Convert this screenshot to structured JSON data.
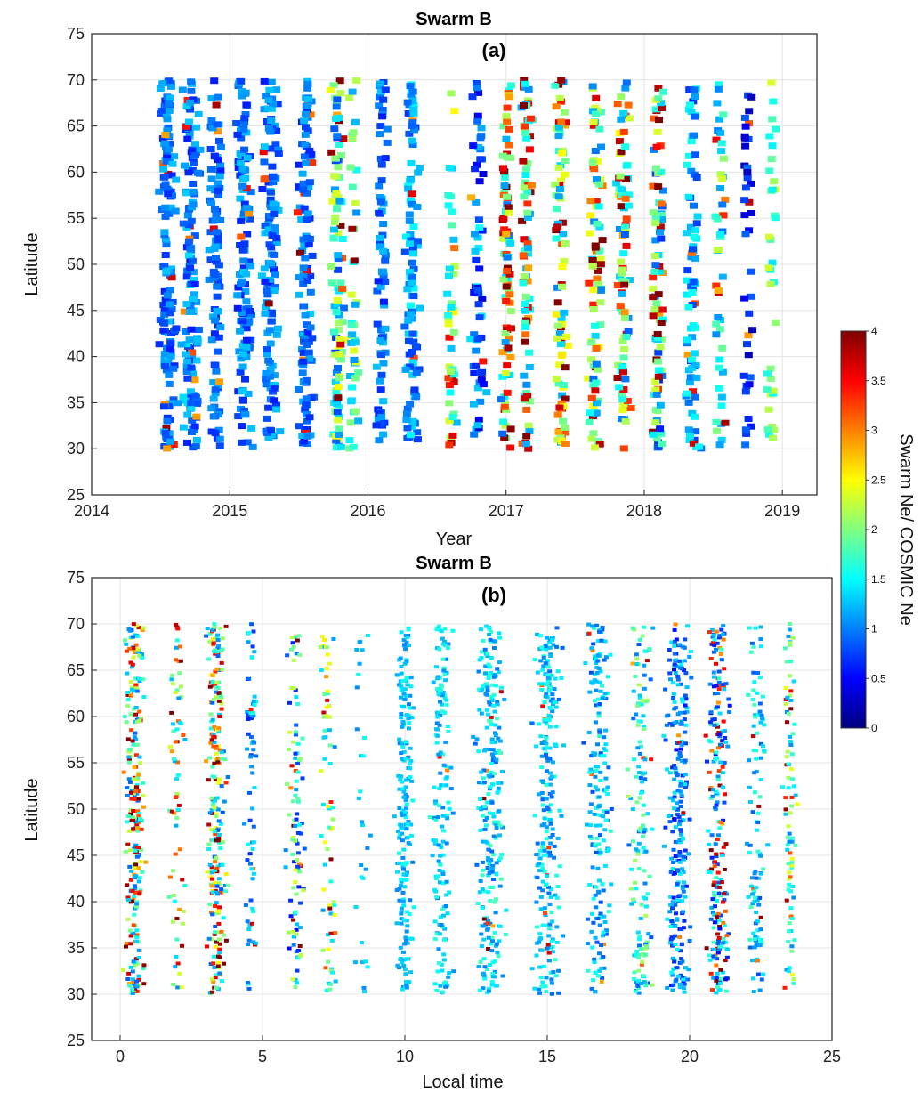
{
  "chart_data": [
    {
      "type": "scatter",
      "title": "Swarm B",
      "panel_label": "(a)",
      "xlabel": "Year",
      "ylabel": "Latitude",
      "xlim": [
        2014,
        2019.25
      ],
      "ylim": [
        25,
        75
      ],
      "xticks": [
        2014,
        2015,
        2016,
        2017,
        2018,
        2019
      ],
      "xtick_labels": [
        "2014",
        "2015",
        "2016",
        "2017",
        "2018",
        "2019"
      ],
      "yticks": [
        25,
        30,
        35,
        40,
        45,
        50,
        55,
        60,
        65,
        70,
        75
      ],
      "ytick_labels": [
        "25",
        "30",
        "35",
        "40",
        "45",
        "50",
        "55",
        "60",
        "65",
        "70",
        "75"
      ],
      "grid": true,
      "lat_range": [
        30,
        70
      ],
      "marker": "square",
      "clusters": [
        {
          "x": 2014.55,
          "spread": 0.08,
          "n": 150,
          "cmin": 0.6,
          "cmax": 1.3,
          "hi_frac": 0.06
        },
        {
          "x": 2014.72,
          "spread": 0.08,
          "n": 140,
          "cmin": 0.6,
          "cmax": 1.4,
          "hi_frac": 0.08
        },
        {
          "x": 2014.9,
          "spread": 0.06,
          "n": 100,
          "cmin": 0.6,
          "cmax": 1.2,
          "hi_frac": 0.03
        },
        {
          "x": 2015.1,
          "spread": 0.08,
          "n": 130,
          "cmin": 0.6,
          "cmax": 1.3,
          "hi_frac": 0.03
        },
        {
          "x": 2015.3,
          "spread": 0.08,
          "n": 130,
          "cmin": 0.6,
          "cmax": 1.3,
          "hi_frac": 0.03
        },
        {
          "x": 2015.55,
          "spread": 0.07,
          "n": 120,
          "cmin": 0.6,
          "cmax": 1.3,
          "hi_frac": 0.05
        },
        {
          "x": 2015.78,
          "spread": 0.06,
          "n": 110,
          "cmin": 0.7,
          "cmax": 2.5,
          "hi_frac": 0.15
        },
        {
          "x": 2015.9,
          "spread": 0.05,
          "n": 45,
          "cmin": 1.0,
          "cmax": 2.4,
          "hi_frac": 0.06
        },
        {
          "x": 2016.1,
          "spread": 0.05,
          "n": 75,
          "cmin": 0.6,
          "cmax": 1.3,
          "hi_frac": 0.0
        },
        {
          "x": 2016.32,
          "spread": 0.07,
          "n": 110,
          "cmin": 0.7,
          "cmax": 1.5,
          "hi_frac": 0.02
        },
        {
          "x": 2016.6,
          "spread": 0.05,
          "n": 45,
          "cmin": 1.2,
          "cmax": 2.6,
          "hi_frac": 0.1
        },
        {
          "x": 2016.8,
          "spread": 0.07,
          "n": 65,
          "cmin": 0.3,
          "cmax": 1.5,
          "hi_frac": 0.05
        },
        {
          "x": 2017.0,
          "spread": 0.05,
          "n": 90,
          "cmin": 0.9,
          "cmax": 2.4,
          "hi_frac": 0.45
        },
        {
          "x": 2017.15,
          "spread": 0.05,
          "n": 90,
          "cmin": 0.9,
          "cmax": 2.2,
          "hi_frac": 0.4
        },
        {
          "x": 2017.4,
          "spread": 0.06,
          "n": 90,
          "cmin": 1.0,
          "cmax": 2.6,
          "hi_frac": 0.35
        },
        {
          "x": 2017.65,
          "spread": 0.07,
          "n": 90,
          "cmin": 0.9,
          "cmax": 2.6,
          "hi_frac": 0.3
        },
        {
          "x": 2017.85,
          "spread": 0.07,
          "n": 90,
          "cmin": 0.8,
          "cmax": 2.6,
          "hi_frac": 0.3
        },
        {
          "x": 2018.1,
          "spread": 0.06,
          "n": 90,
          "cmin": 0.6,
          "cmax": 2.4,
          "hi_frac": 0.3
        },
        {
          "x": 2018.35,
          "spread": 0.07,
          "n": 80,
          "cmin": 0.7,
          "cmax": 1.6,
          "hi_frac": 0.05
        },
        {
          "x": 2018.55,
          "spread": 0.05,
          "n": 50,
          "cmin": 0.9,
          "cmax": 2.4,
          "hi_frac": 0.1
        },
        {
          "x": 2018.75,
          "spread": 0.05,
          "n": 40,
          "cmin": 0.2,
          "cmax": 1.0,
          "hi_frac": 0.05
        },
        {
          "x": 2018.92,
          "spread": 0.05,
          "n": 35,
          "cmin": 1.4,
          "cmax": 2.4,
          "hi_frac": 0.0
        }
      ]
    },
    {
      "type": "scatter",
      "title": "Swarm B",
      "panel_label": "(b)",
      "xlabel": "Local time",
      "ylabel": "Latitude",
      "xlim": [
        -1,
        25
      ],
      "ylim": [
        25,
        75
      ],
      "xticks": [
        0,
        5,
        10,
        15,
        20,
        25
      ],
      "xtick_labels": [
        "0",
        "5",
        "10",
        "15",
        "20",
        "25"
      ],
      "yticks": [
        25,
        30,
        35,
        40,
        45,
        50,
        55,
        60,
        65,
        70,
        75
      ],
      "ytick_labels": [
        "25",
        "30",
        "35",
        "40",
        "45",
        "50",
        "55",
        "60",
        "65",
        "70",
        "75"
      ],
      "grid": true,
      "lat_range": [
        30,
        70
      ],
      "marker": "dot",
      "clusters": [
        {
          "x": 0.5,
          "spread": 0.45,
          "n": 260,
          "cmin": 0.8,
          "cmax": 2.4,
          "hi_frac": 0.35
        },
        {
          "x": 2.0,
          "spread": 0.4,
          "n": 70,
          "cmin": 1.0,
          "cmax": 2.4,
          "hi_frac": 0.3
        },
        {
          "x": 3.4,
          "spread": 0.45,
          "n": 240,
          "cmin": 0.8,
          "cmax": 2.6,
          "hi_frac": 0.4
        },
        {
          "x": 4.6,
          "spread": 0.3,
          "n": 70,
          "cmin": 0.6,
          "cmax": 1.6,
          "hi_frac": 0.03
        },
        {
          "x": 6.2,
          "spread": 0.45,
          "n": 110,
          "cmin": 0.5,
          "cmax": 2.4,
          "hi_frac": 0.12
        },
        {
          "x": 7.3,
          "spread": 0.35,
          "n": 70,
          "cmin": 1.0,
          "cmax": 2.6,
          "hi_frac": 0.08
        },
        {
          "x": 8.5,
          "spread": 0.4,
          "n": 30,
          "cmin": 1.0,
          "cmax": 1.6,
          "hi_frac": 0.0
        },
        {
          "x": 10.0,
          "spread": 0.4,
          "n": 200,
          "cmin": 1.0,
          "cmax": 1.6,
          "hi_frac": 0.0
        },
        {
          "x": 11.3,
          "spread": 0.5,
          "n": 160,
          "cmin": 1.0,
          "cmax": 1.7,
          "hi_frac": 0.02
        },
        {
          "x": 13.0,
          "spread": 0.7,
          "n": 260,
          "cmin": 0.9,
          "cmax": 1.8,
          "hi_frac": 0.02
        },
        {
          "x": 15.0,
          "spread": 0.7,
          "n": 260,
          "cmin": 0.9,
          "cmax": 1.7,
          "hi_frac": 0.02
        },
        {
          "x": 16.8,
          "spread": 0.6,
          "n": 200,
          "cmin": 0.8,
          "cmax": 1.7,
          "hi_frac": 0.02
        },
        {
          "x": 18.3,
          "spread": 0.5,
          "n": 150,
          "cmin": 0.8,
          "cmax": 2.2,
          "hi_frac": 0.03
        },
        {
          "x": 19.6,
          "spread": 0.6,
          "n": 260,
          "cmin": 0.5,
          "cmax": 1.5,
          "hi_frac": 0.03
        },
        {
          "x": 21.0,
          "spread": 0.55,
          "n": 230,
          "cmin": 0.5,
          "cmax": 1.8,
          "hi_frac": 0.3
        },
        {
          "x": 22.4,
          "spread": 0.45,
          "n": 110,
          "cmin": 0.8,
          "cmax": 1.8,
          "hi_frac": 0.08
        },
        {
          "x": 23.5,
          "spread": 0.3,
          "n": 90,
          "cmin": 1.0,
          "cmax": 2.5,
          "hi_frac": 0.12
        }
      ]
    }
  ],
  "colorbar": {
    "label": "Swarm Ne/ COSMIC Ne",
    "min": 0,
    "max": 4,
    "ticks": [
      0,
      0.5,
      1,
      1.5,
      2,
      2.5,
      3,
      3.5,
      4
    ],
    "tick_labels": [
      "0",
      "0.5",
      "1",
      "1.5",
      "2",
      "2.5",
      "3",
      "3.5",
      "4"
    ],
    "colormap": "jet",
    "stops": [
      "#00007f",
      "#0000ff",
      "#0080ff",
      "#00ffff",
      "#80ff80",
      "#ffff00",
      "#ff8000",
      "#ff0000",
      "#7f0000"
    ]
  },
  "colors": {
    "grid": "#e4e4e4",
    "axis": "#222222",
    "background": "#ffffff"
  }
}
